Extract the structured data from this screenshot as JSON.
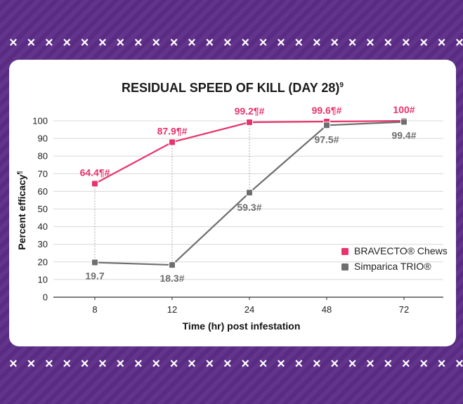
{
  "colors": {
    "background": "#5c2d87",
    "bravecto": "#e8336c",
    "simparica": "#6e6e6e",
    "grid": "#d8d8d8"
  },
  "chart_data": {
    "type": "line",
    "title": "RESIDUAL SPEED OF KILL (DAY 28)",
    "title_footnote": "9",
    "xlabel": "Time (hr) post infestation",
    "ylabel": "Percent efficacy",
    "ylabel_footnote": "¶",
    "categories": [
      "8",
      "12",
      "24",
      "48",
      "72"
    ],
    "ylim": [
      0,
      100
    ],
    "yticks": [
      0,
      10,
      20,
      30,
      40,
      50,
      60,
      70,
      80,
      90,
      100
    ],
    "grid": true,
    "legend_position": "right",
    "series": [
      {
        "name": "BRAVECTO® Chews",
        "values": [
          64.4,
          87.9,
          99.2,
          99.6,
          100
        ],
        "labels": [
          "64.4¶#",
          "87.9¶#",
          "99.2¶#",
          "99.6¶#",
          "100#"
        ]
      },
      {
        "name": "Simparica TRIO®",
        "values": [
          19.7,
          18.3,
          59.3,
          97.5,
          99.4
        ],
        "labels": [
          "19.7",
          "18.3#",
          "59.3#",
          "97.5#",
          "99.4#"
        ]
      }
    ]
  }
}
